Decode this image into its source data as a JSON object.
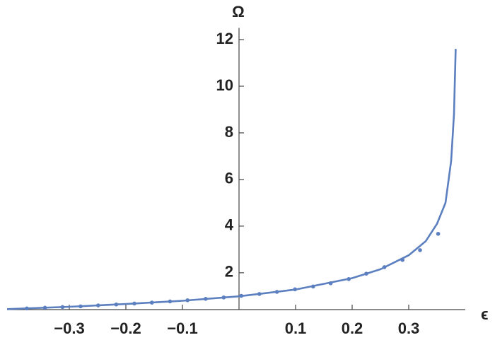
{
  "chart_data": {
    "type": "line",
    "x_label": "ϵ",
    "y_label": "Ω",
    "xlim": [
      -0.41,
      0.4
    ],
    "ylim": [
      0.42,
      12.5
    ],
    "xticks": [
      {
        "value": -0.3,
        "label": "−0.3"
      },
      {
        "value": -0.2,
        "label": "−0.2"
      },
      {
        "value": -0.1,
        "label": "−0.1"
      },
      0.1,
      0.2,
      0.3
    ],
    "yticks": [
      2,
      4,
      6,
      8,
      10,
      12
    ],
    "series": [
      {
        "color": "#5b7fbf",
        "style": "line",
        "x": [
          -0.41,
          -0.3,
          -0.2,
          -0.1,
          0,
          0.1,
          0.2,
          0.25,
          0.3,
          0.33,
          0.35,
          0.365,
          0.375,
          0.38,
          0.383
        ],
        "values": [
          0.44,
          0.54,
          0.66,
          0.8,
          0.99,
          1.28,
          1.77,
          2.15,
          2.75,
          3.35,
          4.1,
          5.0,
          6.8,
          8.8,
          11.6
        ]
      },
      {
        "color": "#5b7fbf",
        "style": "points",
        "x": [
          -0.375,
          -0.343,
          -0.312,
          -0.28,
          -0.249,
          -0.217,
          -0.185,
          -0.154,
          -0.122,
          -0.091,
          -0.059,
          -0.027,
          0.004,
          0.036,
          0.067,
          0.099,
          0.131,
          0.162,
          0.194,
          0.225,
          0.257,
          0.289,
          0.32,
          0.352
        ],
        "values": [
          0.47,
          0.5,
          0.53,
          0.56,
          0.6,
          0.64,
          0.68,
          0.72,
          0.77,
          0.82,
          0.88,
          0.94,
          1.01,
          1.09,
          1.18,
          1.29,
          1.41,
          1.55,
          1.73,
          1.96,
          2.24,
          2.55,
          2.97,
          3.67
        ]
      }
    ]
  }
}
